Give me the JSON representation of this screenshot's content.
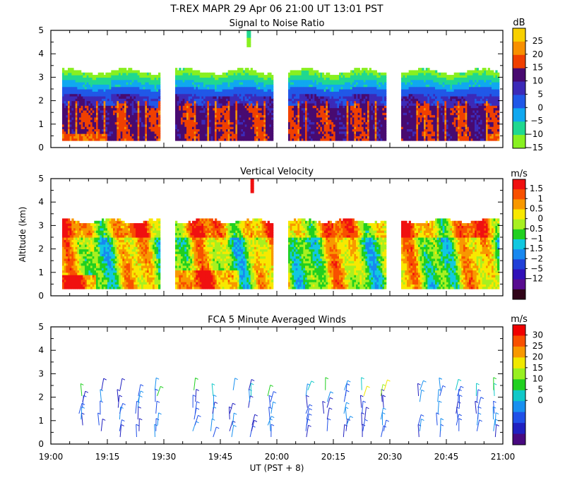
{
  "figure": {
    "title": "T-REX  MAPR 29 Apr 06  21:00 UT  13:01  PST",
    "ylabel": "Altitude (km)",
    "xlabel": "UT  (PST + 8)",
    "colors": {
      "axis": "#000000",
      "background": "#ffffff"
    }
  },
  "chart_data": [
    {
      "type": "heatmap",
      "title": "Signal to Noise Ratio",
      "xlabel": "UT  (PST + 8)",
      "ylabel": "Altitude (km)",
      "xlim": [
        "19:00",
        "21:00"
      ],
      "xticks": [
        "19:00",
        "19:15",
        "19:30",
        "19:45",
        "20:00",
        "20:15",
        "20:30",
        "20:45",
        "21:00"
      ],
      "ylim": [
        0,
        5
      ],
      "yticks": [
        "0",
        "1",
        "2",
        "3",
        "4",
        "5"
      ],
      "colorbar": {
        "unit": "dB",
        "ticks": [
          "25",
          "20",
          "15",
          "10",
          "5",
          "0",
          "−5",
          "−10",
          "−15"
        ],
        "colors": [
          "#f8d000",
          "#f89000",
          "#f04000",
          "#480a70",
          "#3c2ab8",
          "#2058e8",
          "#10a8f0",
          "#20d890",
          "#88f020"
        ]
      },
      "data_segments_minutes_after_1900": [
        [
          3,
          29
        ],
        [
          33,
          59
        ],
        [
          63,
          89
        ],
        [
          93,
          119
        ]
      ],
      "typical_profile": [
        {
          "altitude_km_range": [
            0.3,
            1.8
          ],
          "value": "5 to 15 dB (dark purple)"
        },
        {
          "altitude_km_range": [
            1.8,
            2.5
          ],
          "value": "-5 to 5 dB (blue)"
        },
        {
          "altitude_km_range": [
            2.5,
            3.3
          ],
          "value": "-15 to -5 dB (green)"
        }
      ]
    },
    {
      "type": "heatmap",
      "title": "Vertical Velocity",
      "xlabel": "UT  (PST + 8)",
      "ylabel": "Altitude (km)",
      "xlim": [
        "19:00",
        "21:00"
      ],
      "xticks": [
        "19:00",
        "19:15",
        "19:30",
        "19:45",
        "20:00",
        "20:15",
        "20:30",
        "20:45",
        "21:00"
      ],
      "ylim": [
        0,
        5
      ],
      "yticks": [
        "0",
        "1",
        "2",
        "3",
        "4",
        "5"
      ],
      "colorbar": {
        "unit": "m/s",
        "ticks": [
          "1.5",
          "1",
          "0.5",
          "0",
          "−0.5",
          "−1",
          "−1.5",
          "−2",
          "−5",
          "−12"
        ],
        "colors": [
          "#f01010",
          "#f85000",
          "#f89800",
          "#f8e800",
          "#a8f020",
          "#20d020",
          "#10c8e0",
          "#1888f0",
          "#2040d8",
          "#3010b8",
          "#580c90",
          "#300418"
        ]
      },
      "data_segments_minutes_after_1900": [
        [
          3,
          29
        ],
        [
          33,
          59
        ],
        [
          63,
          89
        ],
        [
          93,
          119
        ]
      ]
    },
    {
      "type": "barbs",
      "title": "FCA 5 Minute Averaged Winds",
      "xlabel": "UT  (PST + 8)",
      "ylabel": "Altitude (km)",
      "xlim": [
        "19:00",
        "21:00"
      ],
      "xticks": [
        "19:00",
        "19:15",
        "19:30",
        "19:45",
        "20:00",
        "20:15",
        "20:30",
        "20:45",
        "21:00"
      ],
      "ylim": [
        0,
        5
      ],
      "yticks": [
        "0",
        "1",
        "2",
        "3",
        "4",
        "5"
      ],
      "colorbar": {
        "unit": "m/s",
        "ticks": [
          "30",
          "25",
          "20",
          "15",
          "10",
          "5",
          "0"
        ],
        "colors": [
          "#f00000",
          "#f85000",
          "#f89800",
          "#f0e800",
          "#98f020",
          "#20d020",
          "#10c8c8",
          "#1890f0",
          "#2050e8",
          "#2020c0",
          "#480a80"
        ]
      },
      "barb_times_minutes_after_1900": [
        8,
        13,
        18,
        23,
        28,
        38,
        43,
        48,
        53,
        58,
        68,
        73,
        78,
        83,
        88,
        98,
        103,
        108,
        113,
        118
      ],
      "barb_altitude_range_km": [
        0.2,
        2.5
      ],
      "typical_speed_ms": "0 to 10",
      "max_speed_ms": 20
    }
  ]
}
